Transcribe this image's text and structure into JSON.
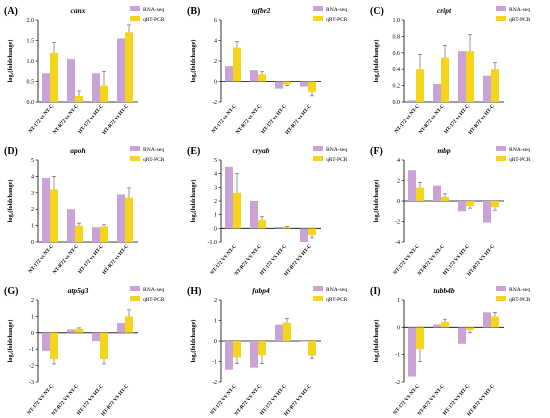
{
  "colors": {
    "rna": "#c9a2d6",
    "qpcr": "#f5d41c"
  },
  "legend": {
    "rna_label": "RNA-seq",
    "qpcr_label": "qRT-PCR"
  },
  "ylabel": "log₂(foldchange)",
  "chart_data": [
    {
      "type": "bar",
      "panel": "(A)",
      "title": "canx",
      "categories": [
        "NT-172 vs NT-C",
        "NT-R72 vs NT-C",
        "HT-172 vs HT-C",
        "HT-R72 vs HT-C"
      ],
      "series": [
        {
          "name": "RNA-seq",
          "values": [
            0.7,
            1.05,
            0.7,
            1.55
          ],
          "errors": [
            0,
            0,
            0,
            0
          ]
        },
        {
          "name": "qRT-PCR",
          "values": [
            1.2,
            0.15,
            0.4,
            1.7
          ],
          "errors": [
            0.25,
            0.12,
            0.35,
            0.18
          ]
        }
      ],
      "ylim": [
        0,
        2
      ],
      "yticks": [
        0,
        0.5,
        1.0,
        1.5,
        2.0
      ],
      "tick_labels": [
        "0.0",
        "0.5",
        "1.0",
        "1.5",
        "2.0"
      ]
    },
    {
      "type": "bar",
      "panel": "(B)",
      "title": "tgfbr2",
      "categories": [
        "NT-172 vs NT-C",
        "NT-R72 vs NT-C",
        "HT-172 vs HT-C",
        "HT-R72 vs HT-C"
      ],
      "series": [
        {
          "name": "RNA-seq",
          "values": [
            1.5,
            1.1,
            -0.7,
            -0.5
          ],
          "errors": [
            0,
            0,
            0,
            0
          ]
        },
        {
          "name": "qRT-PCR",
          "values": [
            3.3,
            0.7,
            -0.3,
            -1.0
          ],
          "errors": [
            0.6,
            0.25,
            0.1,
            0.4
          ]
        }
      ],
      "ylim": [
        -2,
        6
      ],
      "yticks": [
        -2,
        0,
        2,
        4,
        6
      ],
      "tick_labels": [
        "-2",
        "0",
        "2",
        "4",
        "6"
      ]
    },
    {
      "type": "bar",
      "panel": "(C)",
      "title": "cript",
      "categories": [
        "NT-172 vs NT-C",
        "NT-R72 vs NT-C",
        "HT-172 vs HT-C",
        "HT-R72 vs HT-C"
      ],
      "series": [
        {
          "name": "RNA-seq",
          "values": [
            0.02,
            0.22,
            0.62,
            0.32
          ],
          "errors": [
            0,
            0,
            0,
            0
          ]
        },
        {
          "name": "qRT-PCR",
          "values": [
            0.4,
            0.54,
            0.62,
            0.4
          ],
          "errors": [
            0.18,
            0.15,
            0.2,
            0.08
          ]
        }
      ],
      "ylim": [
        0,
        1.0
      ],
      "yticks": [
        0,
        0.2,
        0.4,
        0.6,
        0.8,
        1.0
      ],
      "tick_labels": [
        "0.0",
        "0.2",
        "0.4",
        "0.6",
        "0.8",
        "1.0"
      ]
    },
    {
      "type": "bar",
      "panel": "(D)",
      "title": "apoh",
      "categories": [
        "NT-172 vs NT-C",
        "NT-R72 vs NT-C",
        "HT-172 vs HT-C",
        "HT-R72 vs HT-C"
      ],
      "series": [
        {
          "name": "RNA-seq",
          "values": [
            3.9,
            2.0,
            0.9,
            2.9
          ],
          "errors": [
            0,
            0,
            0,
            0
          ]
        },
        {
          "name": "qRT-PCR",
          "values": [
            3.2,
            1.0,
            0.95,
            2.7
          ],
          "errors": [
            0.8,
            0.15,
            0.1,
            0.6
          ]
        }
      ],
      "ylim": [
        0,
        5
      ],
      "yticks": [
        0,
        1,
        2,
        3,
        4,
        5
      ],
      "tick_labels": [
        "0",
        "1",
        "2",
        "3",
        "4",
        "5"
      ]
    },
    {
      "type": "bar",
      "panel": "(E)",
      "title": "cryab",
      "categories": [
        "NT-172 VS NT-C",
        "NT-R72 VS NT-C",
        "HT-172 VS HT-C",
        "HT-R72 VS HT-C"
      ],
      "series": [
        {
          "name": "RNA-seq",
          "values": [
            4.5,
            2.0,
            0.1,
            -1.0
          ],
          "errors": [
            0,
            0,
            0,
            0
          ]
        },
        {
          "name": "qRT-PCR",
          "values": [
            2.6,
            0.6,
            0.1,
            -0.5
          ],
          "errors": [
            1.4,
            0.25,
            0.05,
            0.2
          ]
        }
      ],
      "ylim": [
        -1,
        5
      ],
      "yticks": [
        -1,
        0,
        1,
        2,
        3,
        4,
        5
      ],
      "tick_labels": [
        "-1.0",
        "0",
        "1",
        "2",
        "3",
        "4",
        "5"
      ]
    },
    {
      "type": "bar",
      "panel": "(F)",
      "title": "mbp",
      "categories": [
        "NT-172 VS NT-C",
        "NT-R72 VS NT-C",
        "HT-172 VS HT-C",
        "HT-R72 VS HT-C"
      ],
      "series": [
        {
          "name": "RNA-seq",
          "values": [
            3.0,
            1.5,
            -1.0,
            -2.1
          ],
          "errors": [
            0,
            0,
            0,
            0
          ]
        },
        {
          "name": "qRT-PCR",
          "values": [
            1.3,
            0.4,
            -0.5,
            -0.6
          ],
          "errors": [
            0.5,
            0.3,
            0.2,
            0.3
          ]
        }
      ],
      "ylim": [
        -4,
        4
      ],
      "yticks": [
        -4,
        -2,
        0,
        2,
        4
      ],
      "tick_labels": [
        "-4",
        "-2",
        "0",
        "2",
        "4"
      ]
    },
    {
      "type": "bar",
      "panel": "(G)",
      "title": "atp5g3",
      "categories": [
        "NT-172 VS NT-C",
        "NT-R72 VS NT-C",
        "HT-172 VS HT-C",
        "HT-R72 VS HT-C"
      ],
      "series": [
        {
          "name": "RNA-seq",
          "values": [
            -1.1,
            0.2,
            -0.5,
            0.6
          ],
          "errors": [
            0,
            0,
            0,
            0
          ]
        },
        {
          "name": "qRT-PCR",
          "values": [
            -1.6,
            0.25,
            -1.6,
            1.0
          ],
          "errors": [
            0.3,
            0.05,
            0.3,
            0.4
          ]
        }
      ],
      "ylim": [
        -3,
        2
      ],
      "yticks": [
        -3,
        -2,
        -1,
        0,
        1,
        2
      ],
      "tick_labels": [
        "-3",
        "-2",
        "-1",
        "0",
        "1",
        "2"
      ]
    },
    {
      "type": "bar",
      "panel": "(H)",
      "title": "fabp4",
      "categories": [
        "NT-172 VS NT-C",
        "NT-R72 VS NT-C",
        "HT-172 VS HT-C",
        "HT-R72 VS HT-C"
      ],
      "series": [
        {
          "name": "RNA-seq",
          "values": [
            -1.4,
            -1.3,
            0.8,
            0.0
          ],
          "errors": [
            0,
            0,
            0,
            0
          ]
        },
        {
          "name": "qRT-PCR",
          "values": [
            -0.8,
            -0.7,
            0.9,
            -0.7
          ],
          "errors": [
            0.3,
            0.4,
            0.2,
            0.15
          ]
        }
      ],
      "ylim": [
        -2,
        2
      ],
      "yticks": [
        -2,
        -1,
        0,
        1,
        2
      ],
      "tick_labels": [
        "-2",
        "-1",
        "0",
        "1",
        "2"
      ]
    },
    {
      "type": "bar",
      "panel": "(I)",
      "title": "tubb4b",
      "categories": [
        "NT-172 VS NT-C",
        "NT-R72 VS NT-C",
        "HT-172 VS HT-C",
        "HT-R72 VS HT-C"
      ],
      "series": [
        {
          "name": "RNA-seq",
          "values": [
            -1.8,
            0.1,
            -0.6,
            0.55
          ],
          "errors": [
            0,
            0,
            0,
            0
          ]
        },
        {
          "name": "qRT-PCR",
          "values": [
            -0.8,
            0.2,
            -0.1,
            0.4
          ],
          "errors": [
            0.45,
            0.1,
            0.1,
            0.15
          ]
        }
      ],
      "ylim": [
        -2,
        1
      ],
      "yticks": [
        -2,
        -1,
        0,
        1
      ],
      "tick_labels": [
        "-2",
        "-1",
        "0",
        "1"
      ]
    }
  ]
}
